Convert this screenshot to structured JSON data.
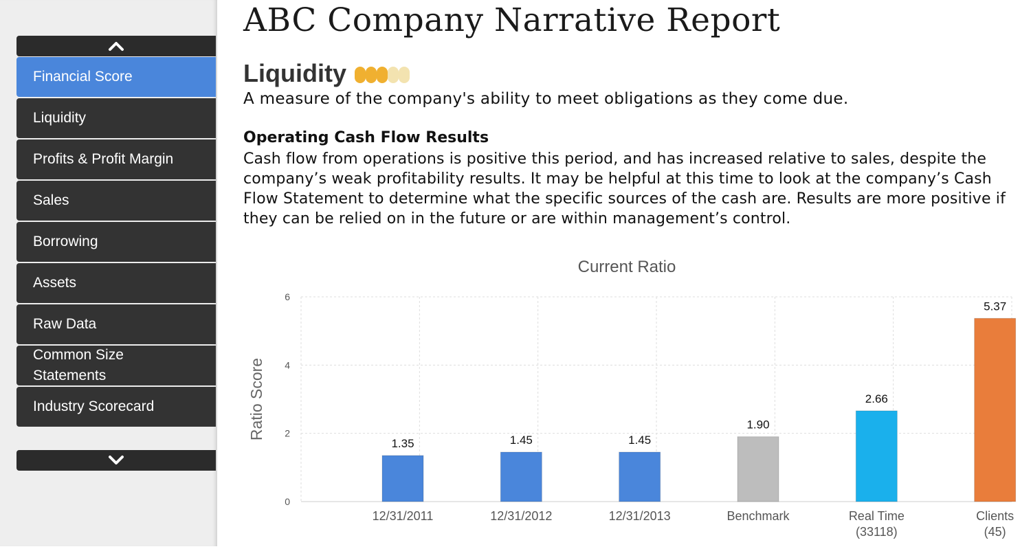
{
  "sidebar": {
    "items": [
      {
        "label": "Financial Score",
        "active": true
      },
      {
        "label": "Liquidity",
        "active": false
      },
      {
        "label": "Profits & Profit Margin",
        "active": false
      },
      {
        "label": "Sales",
        "active": false
      },
      {
        "label": "Borrowing",
        "active": false
      },
      {
        "label": "Assets",
        "active": false
      },
      {
        "label": "Raw Data",
        "active": false
      },
      {
        "label": "Common Size Statements",
        "active": false
      },
      {
        "label": "Industry Scorecard",
        "active": false
      }
    ],
    "scroll_up_icon": "chevron-up-icon",
    "scroll_down_icon": "chevron-down-icon"
  },
  "report": {
    "title": "ABC Company Narrative Report",
    "section_title": "Liquidity",
    "score": {
      "filled": 3,
      "total": 5,
      "filled_color": "#f0b030",
      "empty_color": "#f3e3b0"
    },
    "section_description": "A measure of the company's ability to meet obligations as they come due.",
    "subsection_title": "Operating Cash Flow Results",
    "subsection_body": "Cash flow from operations is positive this period, and has increased relative to sales, despite the company’s weak profitability results. It may be helpful at this time to look at the company’s Cash Flow Statement to determine what the specific sources of the cash are. Results are more positive if they can be relied on in the future or are within management’s control."
  },
  "colors": {
    "accent": "#4a86db",
    "sidebar_item": "#333333"
  },
  "chart_data": {
    "type": "bar",
    "title": "Current Ratio",
    "xlabel": "",
    "ylabel": "Ratio Score",
    "ylim": [
      0,
      6
    ],
    "yticks": [
      0,
      2,
      4,
      6
    ],
    "grid": true,
    "categories": [
      [
        "12/31/2011"
      ],
      [
        "12/31/2012"
      ],
      [
        "12/31/2013"
      ],
      [
        "Benchmark"
      ],
      [
        "Real Time",
        "(33118)"
      ],
      [
        "Clients",
        "(45)"
      ]
    ],
    "values": [
      1.35,
      1.45,
      1.45,
      1.9,
      2.66,
      5.37
    ],
    "value_labels": [
      "1.35",
      "1.45",
      "1.45",
      "1.90",
      "2.66",
      "5.37"
    ],
    "colors": [
      "#4a86db",
      "#4a86db",
      "#4a86db",
      "#bdbdbd",
      "#1ab0ec",
      "#e97d3b"
    ]
  }
}
